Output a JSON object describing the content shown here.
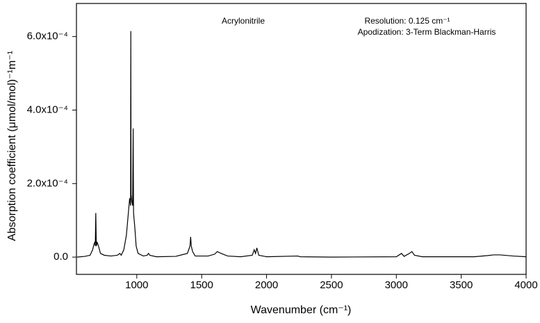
{
  "chart_data": {
    "type": "line",
    "annotations": [
      "Acrylonitrile",
      "Resolution:  0.125 cm⁻¹",
      "Apodization: 3-Term Blackman-Harris"
    ],
    "x_label": "Wavenumber (cm⁻¹)",
    "y_label": "Absorption coefficient (μmol/mol)⁻¹m⁻¹",
    "xlim": [
      535,
      4000
    ],
    "ylim": [
      -4.7e-05,
      0.00069
    ],
    "xticks": [
      1000,
      1500,
      2000,
      2500,
      3000,
      3500,
      4000
    ],
    "yticks": [
      {
        "value": 0,
        "label": "0.0"
      },
      {
        "value": 0.0002,
        "label": "2.0x10⁻⁴"
      },
      {
        "value": 0.0004,
        "label": "4.0x10⁻⁴"
      },
      {
        "value": 0.0006,
        "label": "6.0x10⁻⁴"
      }
    ],
    "series": [
      {
        "color": "#000000",
        "x": [
          540,
          600,
          640,
          660,
          670,
          676,
          680,
          684,
          688,
          695,
          705,
          720,
          750,
          800,
          850,
          870,
          880,
          900,
          920,
          935,
          945,
          952,
          954,
          956,
          962,
          968,
          972,
          975,
          985,
          995,
          1010,
          1050,
          1080,
          1090,
          1100,
          1150,
          1300,
          1390,
          1410,
          1415,
          1420,
          1430,
          1450,
          1550,
          1600,
          1620,
          1650,
          1700,
          1800,
          1890,
          1905,
          1915,
          1925,
          1940,
          2000,
          2240,
          2260,
          2500,
          3000,
          3040,
          3060,
          3100,
          3120,
          3140,
          3200,
          3600,
          3700,
          3750,
          3800,
          3900,
          4000
        ],
        "values": [
          0,
          2e-06,
          5e-06,
          2e-05,
          3.5e-05,
          4e-05,
          3e-05,
          0.00012,
          3e-05,
          4e-05,
          3e-05,
          1e-05,
          5e-06,
          3e-06,
          5e-06,
          1e-05,
          5e-06,
          2e-05,
          6e-05,
          0.00012,
          0.00016,
          0.00014,
          0.000615,
          0.00017,
          0.00015,
          0.00014,
          0.00035,
          0.00012,
          8e-05,
          3e-05,
          1e-05,
          3e-06,
          5e-06,
          1e-05,
          5e-06,
          1e-06,
          2e-06,
          1e-05,
          3e-05,
          5.5e-05,
          3e-05,
          1.5e-05,
          3e-06,
          3e-06,
          8e-06,
          1.5e-05,
          1e-05,
          3e-06,
          1e-06,
          5e-06,
          2e-05,
          1e-05,
          2.5e-05,
          5e-06,
          1e-06,
          3e-06,
          1e-06,
          0,
          1e-06,
          1e-05,
          2e-06,
          1e-05,
          1.5e-05,
          5e-06,
          1e-06,
          1e-06,
          4e-06,
          6e-06,
          6e-06,
          3e-06,
          1e-06
        ]
      }
    ]
  }
}
